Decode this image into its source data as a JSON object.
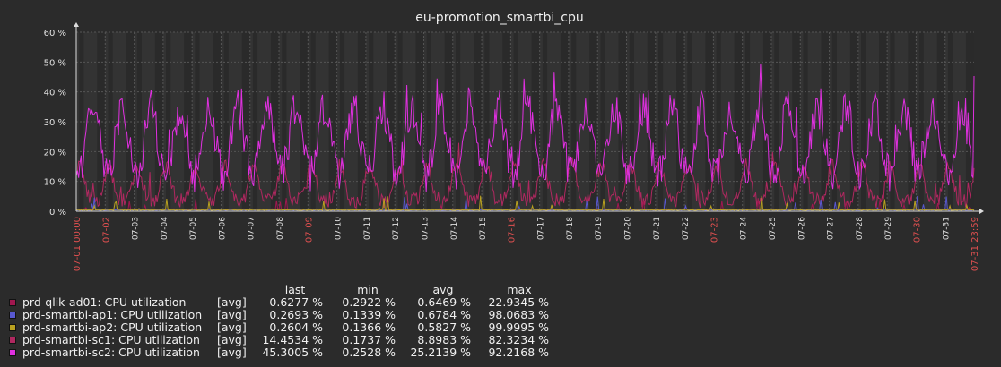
{
  "chart_data": {
    "type": "line",
    "title": "eu-promotion_smartbi_cpu",
    "ylim": [
      0,
      60
    ],
    "y_ticks": [
      "0 %",
      "10 %",
      "20 %",
      "30 %",
      "40 %",
      "50 %",
      "60 %"
    ],
    "x_ticks": [
      {
        "label": "07-01 00:00",
        "red": true
      },
      {
        "label": "07-02",
        "red": true
      },
      {
        "label": "07-03",
        "red": false
      },
      {
        "label": "07-04",
        "red": false
      },
      {
        "label": "07-05",
        "red": false
      },
      {
        "label": "07-06",
        "red": false
      },
      {
        "label": "07-07",
        "red": false
      },
      {
        "label": "07-08",
        "red": false
      },
      {
        "label": "07-09",
        "red": true
      },
      {
        "label": "07-10",
        "red": false
      },
      {
        "label": "07-11",
        "red": false
      },
      {
        "label": "07-12",
        "red": false
      },
      {
        "label": "07-13",
        "red": false
      },
      {
        "label": "07-14",
        "red": false
      },
      {
        "label": "07-15",
        "red": false
      },
      {
        "label": "07-16",
        "red": true
      },
      {
        "label": "07-17",
        "red": false
      },
      {
        "label": "07-18",
        "red": false
      },
      {
        "label": "07-19",
        "red": false
      },
      {
        "label": "07-20",
        "red": false
      },
      {
        "label": "07-21",
        "red": false
      },
      {
        "label": "07-22",
        "red": false
      },
      {
        "label": "07-23",
        "red": true
      },
      {
        "label": "07-24",
        "red": false
      },
      {
        "label": "07-25",
        "red": false
      },
      {
        "label": "07-26",
        "red": false
      },
      {
        "label": "07-27",
        "red": false
      },
      {
        "label": "07-28",
        "red": false
      },
      {
        "label": "07-29",
        "red": false
      },
      {
        "label": "07-30",
        "red": true
      },
      {
        "label": "07-31",
        "red": false
      },
      {
        "label": "07-31 23:59",
        "red": true
      }
    ],
    "legend_headers": {
      "last": "last",
      "min": "min",
      "avg": "avg",
      "max": "max"
    },
    "series": [
      {
        "name": "prd-qlik-ad01: CPU utilization",
        "func": "[avg]",
        "last": "0.6277 %",
        "min": "0.2922 %",
        "avg": "0.6469 %",
        "max": "22.9345 %",
        "color": "#a0174f"
      },
      {
        "name": "prd-smartbi-ap1: CPU utilization",
        "func": "[avg]",
        "last": "0.2693 %",
        "min": "0.1339 %",
        "avg": "0.6784 %",
        "max": "98.0683 %",
        "color": "#5858d0"
      },
      {
        "name": "prd-smartbi-ap2: CPU utilization",
        "func": "[avg]",
        "last": "0.2604 %",
        "min": "0.1366 %",
        "avg": "0.5827 %",
        "max": "99.9995 %",
        "color": "#b8a020"
      },
      {
        "name": "prd-smartbi-sc1: CPU utilization",
        "func": "[avg]",
        "last": "14.4534 %",
        "min": "0.1737 %",
        "avg": "8.8983 %",
        "max": "82.3234 %",
        "color": "#b02860"
      },
      {
        "name": "prd-smartbi-sc2: CPU utilization",
        "func": "[avg]",
        "last": "45.3005 %",
        "min": "0.2528 %",
        "avg": "25.2139 %",
        "max": "92.2168 %",
        "color": "#e030e0"
      }
    ]
  }
}
